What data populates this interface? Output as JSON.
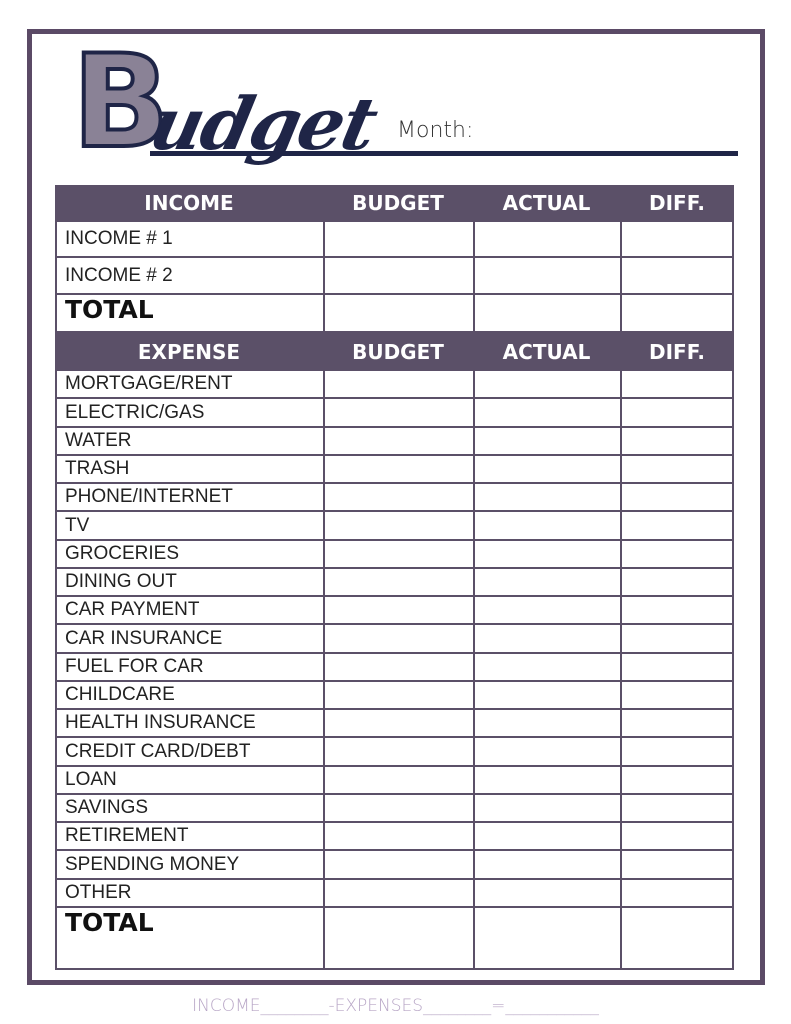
{
  "title": {
    "initial": "B",
    "rest": "udget",
    "month_label": "Month:"
  },
  "income": {
    "headers": [
      "INCOME",
      "BUDGET",
      "ACTUAL",
      "DIFF."
    ],
    "rows": [
      "INCOME # 1",
      "INCOME # 2"
    ],
    "total": "TOTAL"
  },
  "expense": {
    "headers": [
      "EXPENSE",
      "BUDGET",
      "ACTUAL",
      "DIFF."
    ],
    "rows": [
      "MORTGAGE/RENT",
      "ELECTRIC/GAS",
      "WATER",
      "TRASH",
      "PHONE/INTERNET",
      "TV",
      "GROCERIES",
      "DINING OUT",
      "CAR PAYMENT",
      "CAR INSURANCE",
      "FUEL FOR CAR",
      "CHILDCARE",
      "HEALTH INSURANCE",
      "CREDIT CARD/DEBT",
      "LOAN",
      "SAVINGS",
      "RETIREMENT",
      "SPENDING MONEY",
      "OTHER"
    ],
    "total": "TOTAL"
  },
  "footer": "INCOME________-EXPENSES________=___________",
  "colors": {
    "frame": "#5b4a66",
    "header": "#5b5068",
    "title": "#1f2547",
    "footer": "#b8a6c6"
  }
}
